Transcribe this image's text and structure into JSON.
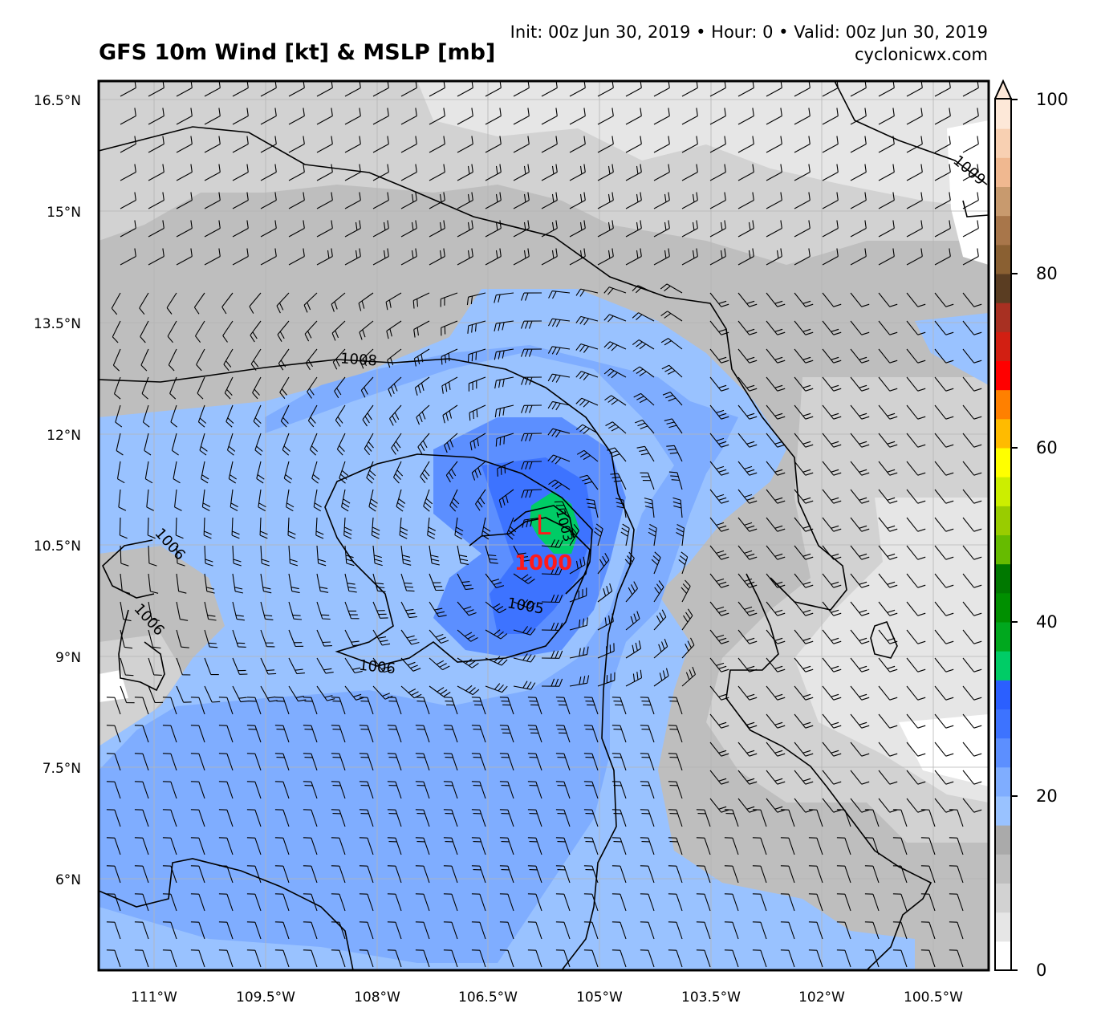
{
  "header": {
    "title": "GFS 10m Wind [kt] & MSLP [mb]",
    "init_line": "Init: 00z Jun 30, 2019 • Hour: 0 • Valid: 00z Jun 30, 2019",
    "site": "cyclonicwx.com"
  },
  "map": {
    "lat_labels": [
      "16.5°N",
      "15°N",
      "13.5°N",
      "12°N",
      "10.5°N",
      "9°N",
      "7.5°N",
      "6°N"
    ],
    "lon_labels": [
      "111°W",
      "109.5°W",
      "108°W",
      "106.5°W",
      "105°W",
      "103.5°W",
      "102°W",
      "100.5°W"
    ],
    "isobar_labels": [
      "1008",
      "1006",
      "1006",
      "1006",
      "1005",
      "1003",
      "1009"
    ],
    "low_center": {
      "marker": "L",
      "pressure": "1000",
      "color": "#ff1a1a"
    }
  },
  "colorbar": {
    "tick_labels": [
      "100",
      "80",
      "60",
      "40",
      "20",
      "0"
    ],
    "colors_bottom_to_top": [
      "#ffffff",
      "#e6e6e6",
      "#d2d2d2",
      "#bebebe",
      "#aaaaaa",
      "#99c2ff",
      "#7fadff",
      "#5c8fff",
      "#3d73ff",
      "#2b5fff",
      "#00cc66",
      "#00a81e",
      "#008f00",
      "#007800",
      "#66bb00",
      "#99cc00",
      "#ccee00",
      "#ffff00",
      "#ffbb00",
      "#ff8000",
      "#ff0000",
      "#d21f12",
      "#a83022",
      "#5a3d22",
      "#8a6032",
      "#a8764a",
      "#c89a6e",
      "#f0b890",
      "#f8d0b2",
      "#fde8d8"
    ]
  }
}
